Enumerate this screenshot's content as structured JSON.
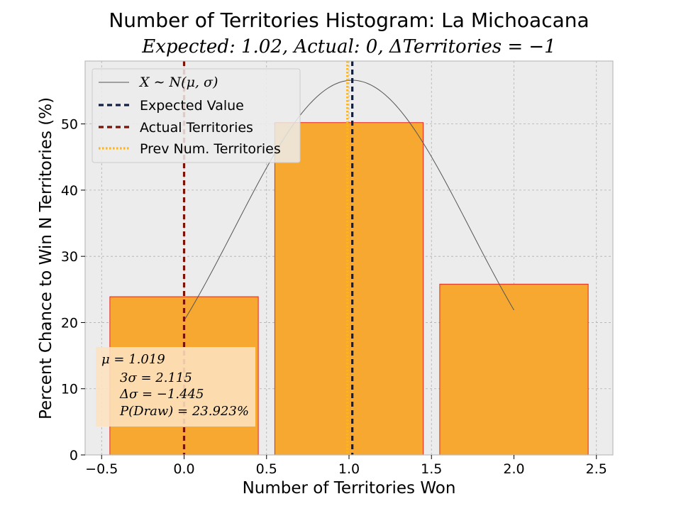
{
  "chart_data": {
    "type": "bar",
    "title": "Number of Territories Histogram: La Michoacana",
    "subtitle": "Expected: 1.02, Actual: 0, ΔTerritories = −1",
    "xlabel": "Number of Territories Won",
    "ylabel": "Percent Chance to Win N Territories (%)",
    "xlim": [
      -0.6,
      2.6
    ],
    "ylim": [
      0,
      59.5
    ],
    "xticks": [
      -0.5,
      0.0,
      0.5,
      1.0,
      1.5,
      2.0,
      2.5
    ],
    "xtick_labels": [
      "−0.5",
      "0.0",
      "0.5",
      "1.0",
      "1.5",
      "2.0",
      "2.5"
    ],
    "yticks": [
      0,
      10,
      20,
      30,
      40,
      50
    ],
    "ytick_labels": [
      "0",
      "10",
      "20",
      "30",
      "40",
      "50"
    ],
    "grid": true,
    "bars": {
      "x": [
        0,
        1,
        2
      ],
      "values": [
        23.9,
        50.2,
        25.8
      ],
      "width": 0.9,
      "color": "#f7a830",
      "edge_color": "#e8231f"
    },
    "normal_curve": {
      "label": "X ∼ N(μ, σ)",
      "mu": 1.019,
      "x_range": [
        0,
        2
      ],
      "peak": 56.6,
      "value_at_0": 20.3,
      "value_at_2": 21.5,
      "color": "#555555"
    },
    "vlines": [
      {
        "label": "Expected Value",
        "x": 1.02,
        "color": "#0f1f47",
        "style": "dashed"
      },
      {
        "label": "Actual Territories",
        "x": 0.0,
        "color": "#7a1206",
        "style": "dashed"
      },
      {
        "label": "Prev Num. Territories",
        "x": 0.99,
        "color": "#ffb515",
        "style": "dotted"
      }
    ],
    "legend_placement": "top-left",
    "stats_box": {
      "lines": [
        "μ = 1.019",
        "3σ = 2.115",
        "Δσ = −1.445",
        "P(Draw) = 23.923%"
      ]
    },
    "colors": {
      "axes_background": "#ececec",
      "grid": "#b0b0b0",
      "stats_box": "#fde3bf"
    }
  }
}
